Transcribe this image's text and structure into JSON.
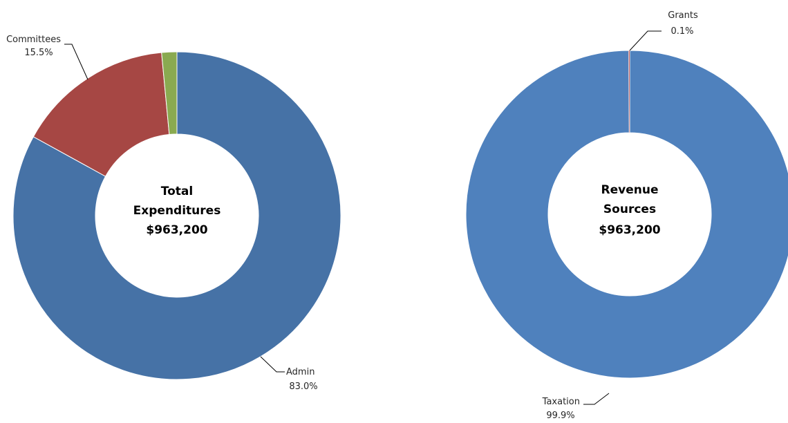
{
  "colors": {
    "admin": "#4672A6",
    "committees": "#A64744",
    "other": "#8AAA50",
    "taxation": "#4F81BD",
    "grants": "#C0504D"
  },
  "chart_data": [
    {
      "type": "pie",
      "variant": "donut",
      "center_text": {
        "line1": "Total",
        "line2": "Expenditures",
        "line3": "$963,200"
      },
      "slices": [
        {
          "label": "Admin",
          "value": 83.0,
          "value_label": "83.0%",
          "color_key": "admin"
        },
        {
          "label": "Committees",
          "value": 15.5,
          "value_label": "15.5%",
          "color_key": "committees"
        },
        {
          "label": "",
          "value": 1.5,
          "value_label": "",
          "color_key": "other"
        }
      ]
    },
    {
      "type": "pie",
      "variant": "donut",
      "center_text": {
        "line1": "Revenue",
        "line2": "Sources",
        "line3": "$963,200"
      },
      "slices": [
        {
          "label": "Taxation",
          "value": 99.9,
          "value_label": "99.9%",
          "color_key": "taxation"
        },
        {
          "label": "Grants",
          "value": 0.1,
          "value_label": "0.1%",
          "color_key": "grants"
        }
      ]
    }
  ]
}
